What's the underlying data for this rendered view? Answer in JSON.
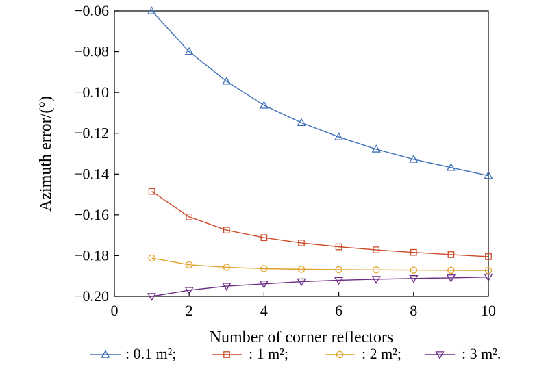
{
  "chart_data": {
    "type": "line",
    "title": "",
    "xlabel": "Number of corner reflectors",
    "ylabel": "Azimuth error/(°)",
    "xlim": [
      0,
      10
    ],
    "ylim": [
      -0.2,
      -0.06
    ],
    "xticks": [
      0,
      2,
      4,
      6,
      8,
      10
    ],
    "xtick_labels": [
      "0",
      "2",
      "4",
      "6",
      "8",
      "10"
    ],
    "yticks": [
      -0.2,
      -0.18,
      -0.16,
      -0.14,
      -0.12,
      -0.1,
      -0.08,
      -0.06
    ],
    "ytick_labels": [
      "−0.20",
      "−0.18",
      "−0.16",
      "−0.14",
      "−0.12",
      "−0.10",
      "−0.08",
      "−0.06"
    ],
    "grid": false,
    "legend_position": "bottom",
    "x": [
      1,
      2,
      3,
      4,
      5,
      6,
      7,
      8,
      9,
      10
    ],
    "series": [
      {
        "name": ": 0.1 m²;",
        "color": "#3d6fb6",
        "marker": "triangle-up",
        "values": [
          -0.06,
          -0.08,
          -0.0945,
          -0.1063,
          -0.1148,
          -0.1218,
          -0.1278,
          -0.1328,
          -0.1368,
          -0.1408
        ]
      },
      {
        "name": ": 1 m²;",
        "color": "#cc4a28",
        "marker": "square",
        "values": [
          -0.1485,
          -0.161,
          -0.1675,
          -0.1712,
          -0.1738,
          -0.1757,
          -0.1772,
          -0.1784,
          -0.1795,
          -0.1805
        ]
      },
      {
        "name": ": 2 m²;",
        "color": "#e0a12a",
        "marker": "circle",
        "values": [
          -0.1812,
          -0.1845,
          -0.1857,
          -0.1864,
          -0.1867,
          -0.1869,
          -0.187,
          -0.1871,
          -0.1872,
          -0.1873
        ]
      },
      {
        "name": ": 3 m².",
        "color": "#6c2a85",
        "marker": "triangle-down",
        "values": [
          -0.2,
          -0.197,
          -0.195,
          -0.1939,
          -0.1928,
          -0.1921,
          -0.1916,
          -0.1912,
          -0.1909,
          -0.1905
        ]
      }
    ]
  }
}
